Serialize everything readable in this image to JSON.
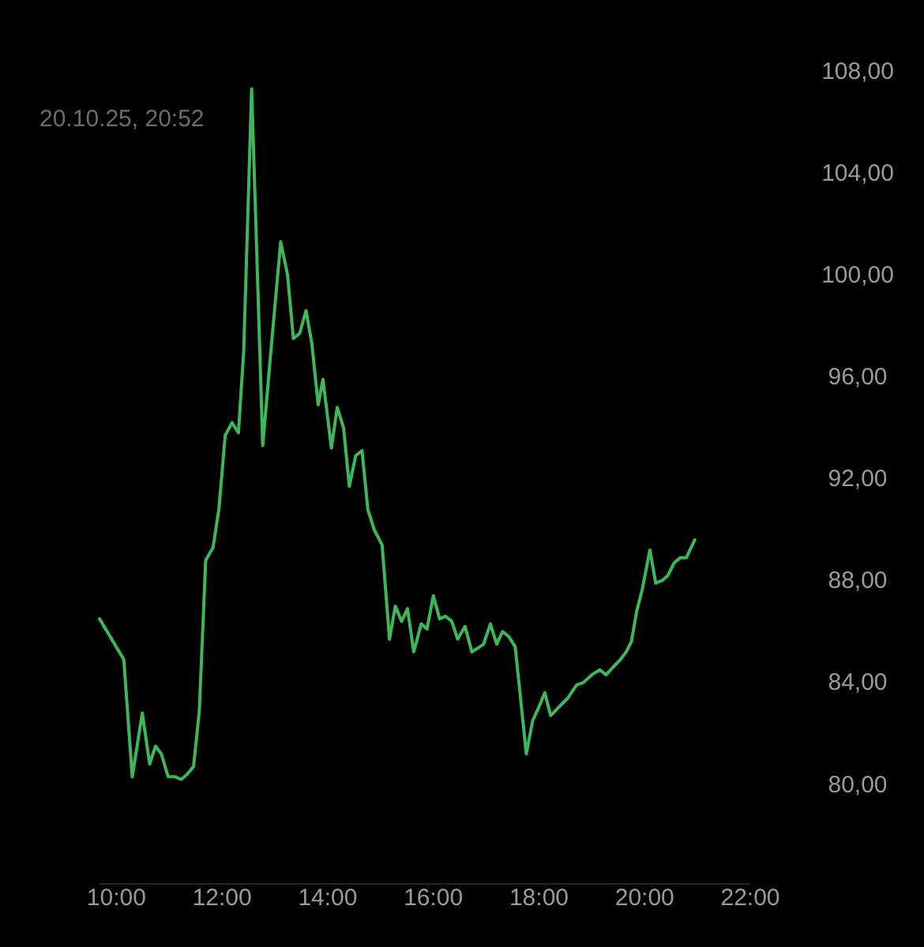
{
  "chart_data": {
    "type": "line",
    "subtitle": "20.10.25, 20:52",
    "x": [
      9.68,
      10.14,
      10.3,
      10.49,
      10.63,
      10.74,
      10.85,
      10.98,
      11.11,
      11.23,
      11.34,
      11.46,
      11.57,
      11.69,
      11.83,
      11.94,
      12.06,
      12.19,
      12.31,
      12.41,
      12.56,
      12.67,
      12.77,
      12.95,
      13.11,
      13.24,
      13.35,
      13.47,
      13.59,
      13.7,
      13.82,
      13.91,
      14.07,
      14.18,
      14.3,
      14.41,
      14.53,
      14.65,
      14.76,
      14.88,
      15.03,
      15.17,
      15.28,
      15.4,
      15.51,
      15.63,
      15.77,
      15.88,
      16.0,
      16.12,
      16.23,
      16.35,
      16.46,
      16.6,
      16.73,
      16.95,
      17.08,
      17.2,
      17.31,
      17.43,
      17.55,
      17.76,
      17.88,
      17.99,
      18.11,
      18.22,
      18.36,
      18.55,
      18.71,
      18.84,
      19.0,
      19.15,
      19.27,
      19.4,
      19.54,
      19.65,
      19.75,
      19.85,
      19.96,
      20.1,
      20.21,
      20.33,
      20.44,
      20.56,
      20.68,
      20.79,
      20.95
    ],
    "series": [
      {
        "color": "#3cb85a",
        "values": [
          86.5,
          84.9,
          80.3,
          82.8,
          80.8,
          81.5,
          81.2,
          80.3,
          80.3,
          80.2,
          80.4,
          80.7,
          82.9,
          88.8,
          89.3,
          90.8,
          93.7,
          94.2,
          93.8,
          97.0,
          107.3,
          100.0,
          93.3,
          97.6,
          101.3,
          100.0,
          97.5,
          97.7,
          98.6,
          97.3,
          94.9,
          95.9,
          93.2,
          94.8,
          94.0,
          91.7,
          92.9,
          93.1,
          90.8,
          90.0,
          89.4,
          85.7,
          87.0,
          86.4,
          86.9,
          85.2,
          86.3,
          86.1,
          87.4,
          86.5,
          86.6,
          86.4,
          85.7,
          86.2,
          85.2,
          85.5,
          86.3,
          85.5,
          86.0,
          85.8,
          85.4,
          81.2,
          82.5,
          83.0,
          83.6,
          82.7,
          83.0,
          83.4,
          83.9,
          84.0,
          84.3,
          84.5,
          84.3,
          84.6,
          84.9,
          85.2,
          85.6,
          86.8,
          87.7,
          89.2,
          87.9,
          88.0,
          88.2,
          88.7,
          88.9,
          88.9,
          89.6
        ]
      }
    ],
    "xticks": [
      {
        "value": 10,
        "label": "10:00"
      },
      {
        "value": 12,
        "label": "12:00"
      },
      {
        "value": 14,
        "label": "14:00"
      },
      {
        "value": 16,
        "label": "16:00"
      },
      {
        "value": 18,
        "label": "18:00"
      },
      {
        "value": 20,
        "label": "20:00"
      },
      {
        "value": 22,
        "label": "22:00"
      }
    ],
    "xlim": [
      9.68,
      22
    ],
    "ylim": [
      80,
      108
    ],
    "yticks": [
      {
        "value": 80,
        "label": "80,00"
      },
      {
        "value": 84,
        "label": "84,00"
      },
      {
        "value": 88,
        "label": "88,00"
      },
      {
        "value": 92,
        "label": "92,00"
      },
      {
        "value": 96,
        "label": "96,00"
      },
      {
        "value": 100,
        "label": "100,00"
      },
      {
        "value": 104,
        "label": "104,00"
      },
      {
        "value": 108,
        "label": "108,00"
      }
    ],
    "grid": false,
    "marker": "none",
    "line_style": "solid"
  }
}
